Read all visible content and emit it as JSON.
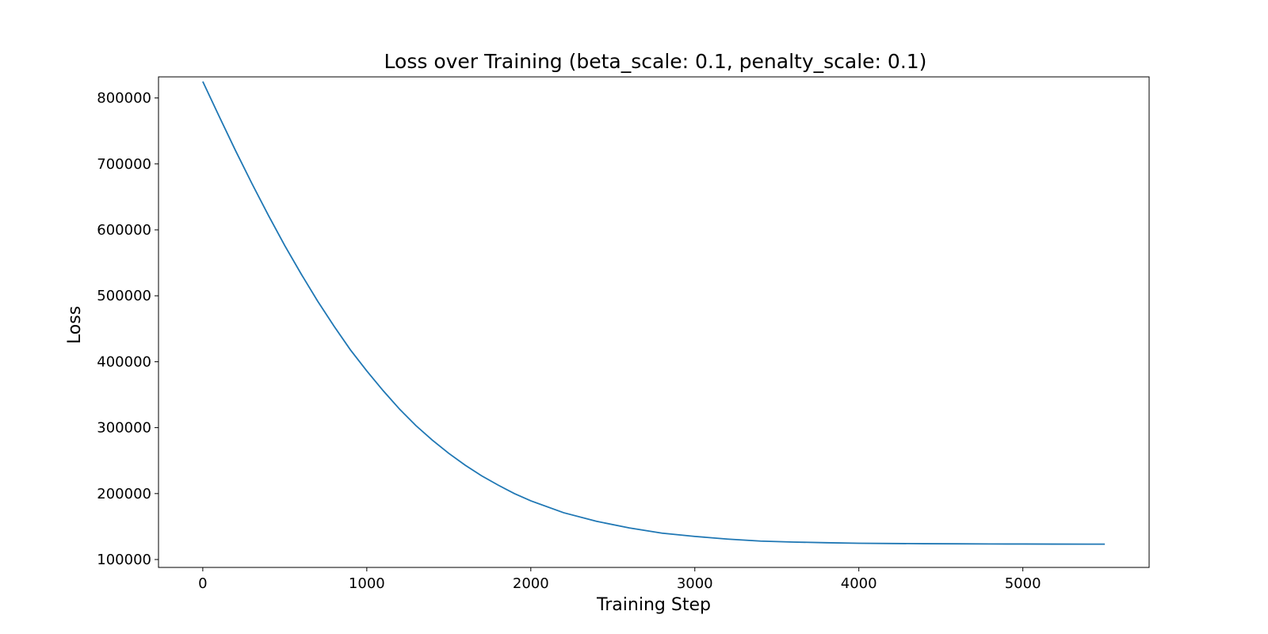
{
  "chart_data": {
    "type": "line",
    "title": "Loss over Training (beta_scale: 0.1, penalty_scale: 0.1)",
    "xlabel": "Training Step",
    "ylabel": "Loss",
    "xlim": [
      -270,
      5770
    ],
    "ylim": [
      88000,
      832000
    ],
    "xticks": [
      0,
      1000,
      2000,
      3000,
      4000,
      5000
    ],
    "yticks": [
      100000,
      200000,
      300000,
      400000,
      500000,
      600000,
      700000,
      800000
    ],
    "grid": false,
    "series": [
      {
        "color": "#1f77b4",
        "x": [
          0,
          100,
          200,
          300,
          400,
          500,
          600,
          700,
          800,
          900,
          1000,
          1100,
          1200,
          1300,
          1400,
          1500,
          1600,
          1700,
          1800,
          1900,
          2000,
          2200,
          2400,
          2600,
          2800,
          3000,
          3200,
          3400,
          3600,
          3800,
          4000,
          4200,
          4400,
          4600,
          4800,
          5000,
          5200,
          5400,
          5500
        ],
        "y": [
          825000,
          772000,
          720000,
          670000,
          622000,
          576000,
          533000,
          492000,
          454000,
          418000,
          386000,
          356000,
          328000,
          303000,
          281000,
          261000,
          243000,
          227000,
          213000,
          200000,
          189000,
          171000,
          158000,
          148000,
          140000,
          135000,
          131000,
          128000,
          126500,
          125500,
          124700,
          124300,
          124000,
          123800,
          123600,
          123500,
          123400,
          123300,
          123300
        ]
      }
    ]
  }
}
